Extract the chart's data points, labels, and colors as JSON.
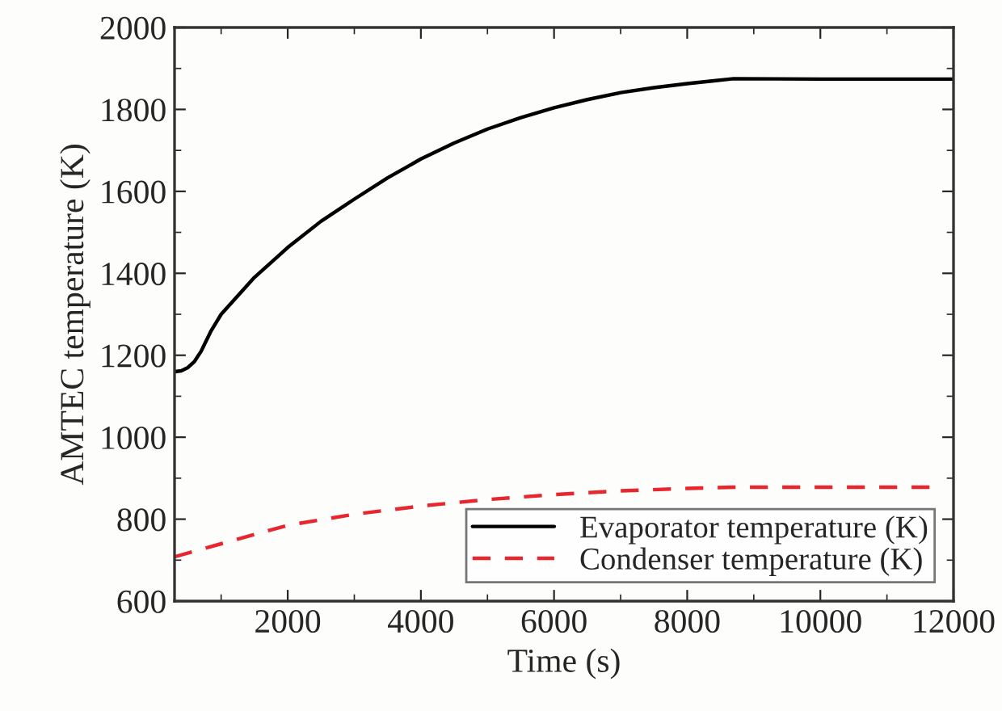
{
  "chart_data": {
    "type": "line",
    "xlabel": "Time (s)",
    "ylabel": "AMTEC temperature (K)",
    "xlim": [
      300,
      12000
    ],
    "xticks": [
      2000,
      4000,
      6000,
      8000,
      10000,
      12000
    ],
    "ylim": [
      600,
      2000
    ],
    "yticks": [
      600,
      800,
      1000,
      1200,
      1400,
      1600,
      1800,
      2000
    ],
    "grid": false,
    "legend": "bottom right",
    "series": [
      {
        "name": "Evaporator temperature (K)",
        "color": "#000000",
        "line_style": "solid",
        "x": [
          300,
          400,
          500,
          600,
          700,
          850,
          1000,
          1500,
          2000,
          2500,
          3000,
          3500,
          4000,
          4500,
          5000,
          5500,
          6000,
          6500,
          7000,
          7500,
          8000,
          8400,
          8700,
          10000,
          12000
        ],
        "values": [
          1160,
          1162,
          1170,
          1185,
          1210,
          1260,
          1300,
          1390,
          1463,
          1527,
          1581,
          1633,
          1679,
          1718,
          1752,
          1780,
          1804,
          1824,
          1841,
          1853,
          1863,
          1870,
          1875,
          1874,
          1874
        ]
      },
      {
        "name": "Condenser temperature (K)",
        "color": "#e8262d",
        "line_style": "dashed",
        "x": [
          300,
          1000,
          2000,
          3000,
          4000,
          5000,
          6000,
          7000,
          8000,
          8700,
          10000,
          11700
        ],
        "values": [
          708,
          740,
          785,
          812,
          832,
          848,
          860,
          869,
          875,
          878,
          878,
          878
        ]
      }
    ]
  }
}
